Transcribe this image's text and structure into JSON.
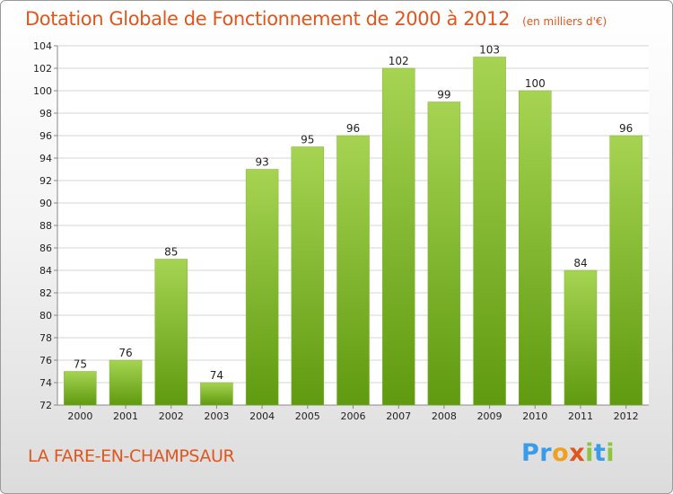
{
  "header": {
    "title": "Dotation Globale de Fonctionnement de 2000 à 2012",
    "subtitle": "(en milliers d'€)"
  },
  "footer": {
    "place": "LA FARE-EN-CHAMPSAUR",
    "logo": [
      "P",
      "r",
      "o",
      "x",
      "i",
      "t",
      "i"
    ]
  },
  "colors": {
    "title": "#e0561c",
    "bar_top": "#a6d452",
    "bar_bottom": "#5f9a10",
    "logo": [
      "#3a9be8",
      "#3a9be8",
      "#f0a020",
      "#e0561c",
      "#8cc63f",
      "#3a9be8",
      "#8cc63f"
    ]
  },
  "chart_data": {
    "type": "bar",
    "categories": [
      "2000",
      "2001",
      "2002",
      "2003",
      "2004",
      "2005",
      "2006",
      "2007",
      "2008",
      "2009",
      "2010",
      "2011",
      "2012"
    ],
    "values": [
      75,
      76,
      85,
      74,
      93,
      95,
      96,
      102,
      99,
      103,
      100,
      84,
      96
    ],
    "ylim": [
      72,
      104
    ],
    "yticks": [
      72,
      74,
      76,
      78,
      80,
      82,
      84,
      86,
      88,
      90,
      92,
      94,
      96,
      98,
      100,
      102,
      104
    ],
    "grid": true,
    "legend": "none"
  }
}
